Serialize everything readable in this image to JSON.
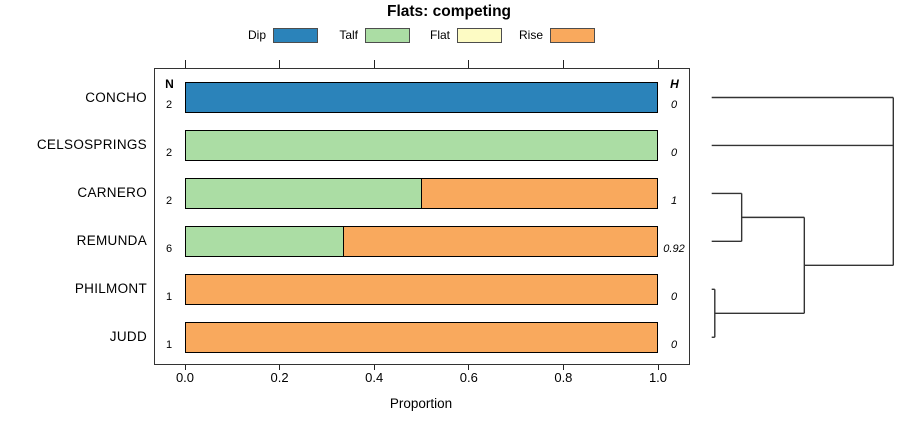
{
  "chart_data": {
    "type": "bar",
    "orientation": "horizontal",
    "stacked": true,
    "title": "Flats: competing",
    "xlabel": "Proportion",
    "xlim": [
      0,
      1
    ],
    "x_ticks": [
      0,
      0.2,
      0.4,
      0.6,
      0.8,
      1.0
    ],
    "x_tick_labels": [
      "0.0",
      "0.2",
      "0.4",
      "0.6",
      "0.8",
      "1.0"
    ],
    "grid": false,
    "legend_position": "top",
    "legend_entries": [
      "Dip",
      "Talf",
      "Flat",
      "Rise"
    ],
    "palette": {
      "Dip": "#2B83BA",
      "Talf": "#ABDDA4",
      "Flat": "#FDFBC4",
      "Rise": "#F9A95D"
    },
    "categories": [
      "CONCHO",
      "CELSOSPRINGS",
      "CARNERO",
      "REMUNDA",
      "PHILMONT",
      "JUDD"
    ],
    "series": [
      {
        "name": "Dip",
        "values": [
          1,
          0,
          0,
          0,
          0,
          0
        ]
      },
      {
        "name": "Talf",
        "values": [
          0,
          1,
          0.5,
          0.333,
          0,
          0
        ]
      },
      {
        "name": "Flat",
        "values": [
          0,
          0,
          0,
          0,
          0,
          0
        ]
      },
      {
        "name": "Rise",
        "values": [
          0,
          0,
          0.5,
          0.667,
          1,
          1
        ]
      }
    ],
    "n_header_label": "N",
    "h_header_label": "H",
    "n_values": [
      "2",
      "2",
      "2",
      "6",
      "1",
      "1"
    ],
    "h_values": [
      "0",
      "0",
      "1",
      "0.92",
      "0",
      "0"
    ],
    "dendrogram": {
      "side": "right",
      "tree": {
        "height": 1.0,
        "children": [
          {
            "leaf": "CONCHO"
          },
          {
            "leaf": "CELSOSPRINGS"
          },
          {
            "height": 0.51,
            "children": [
              {
                "height": 0.165,
                "children": [
                  {
                    "leaf": "CARNERO"
                  },
                  {
                    "leaf": "REMUNDA"
                  }
                ]
              },
              {
                "height": 0.017,
                "children": [
                  {
                    "leaf": "PHILMONT"
                  },
                  {
                    "leaf": "JUDD"
                  }
                ]
              }
            ]
          }
        ]
      }
    }
  }
}
